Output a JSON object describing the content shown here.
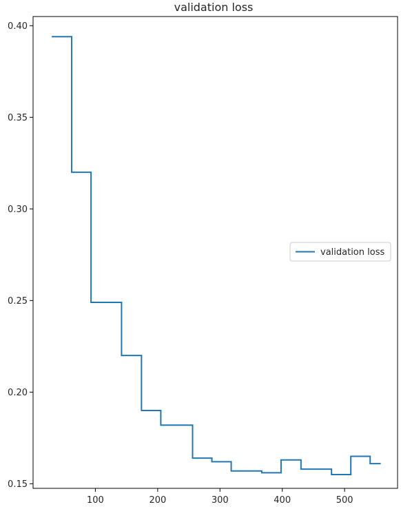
{
  "chart_data": {
    "type": "line",
    "title": "validation loss",
    "xlabel": "",
    "ylabel": "",
    "xlim": [
      0,
      585
    ],
    "ylim": [
      0.1475,
      0.405
    ],
    "xticks": [
      100,
      200,
      300,
      400,
      500
    ],
    "yticks": [
      0.15,
      0.2,
      0.25,
      0.3,
      0.35,
      0.4
    ],
    "grid": false,
    "legend_position": "center-right",
    "series": [
      {
        "name": "validation loss",
        "color": "#1f77b4",
        "drawstyle": "steps",
        "x": [
          30,
          62,
          62,
          93,
          93,
          142,
          142,
          174,
          174,
          205,
          205,
          256,
          256,
          287,
          287,
          318,
          318,
          367,
          367,
          398,
          398,
          430,
          430,
          479,
          479,
          510,
          510,
          541,
          541,
          558
        ],
        "y": [
          0.394,
          0.394,
          0.32,
          0.32,
          0.249,
          0.249,
          0.22,
          0.22,
          0.19,
          0.19,
          0.182,
          0.182,
          0.164,
          0.164,
          0.162,
          0.162,
          0.157,
          0.157,
          0.156,
          0.156,
          0.163,
          0.163,
          0.158,
          0.158,
          0.155,
          0.155,
          0.165,
          0.165,
          0.161,
          0.161
        ]
      }
    ]
  }
}
